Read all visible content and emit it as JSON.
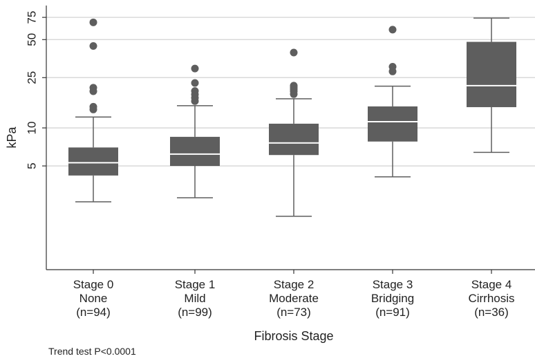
{
  "chart_data": {
    "type": "box",
    "title": "",
    "xlabel": "Fibrosis Stage",
    "ylabel": "kPa",
    "yscale": "log",
    "ylim": [
      1.3,
      95
    ],
    "yticks": [
      5,
      10,
      25,
      50,
      75
    ],
    "grid": true,
    "categories": [
      {
        "lines": [
          "Stage 0",
          "None",
          "(n=94)"
        ]
      },
      {
        "lines": [
          "Stage 1",
          "Mild",
          "(n=99)"
        ]
      },
      {
        "lines": [
          "Stage 2",
          "Moderate",
          "(n=73)"
        ]
      },
      {
        "lines": [
          "Stage 3",
          "Bridging",
          "(n=91)"
        ]
      },
      {
        "lines": [
          "Stage 4",
          "Cirrhosis",
          "(n=36)"
        ]
      }
    ],
    "boxes": [
      {
        "min": 2.6,
        "q1": 4.2,
        "median": 5.3,
        "q3": 7.0,
        "max": 12.2,
        "outliers": [
          14.0,
          14.7,
          19.5,
          20.8,
          44.5,
          68.5
        ]
      },
      {
        "min": 2.8,
        "q1": 5.0,
        "median": 6.2,
        "q3": 8.5,
        "max": 15.0,
        "outliers": [
          16.3,
          17.3,
          18.4,
          19.6,
          22.7,
          29.5
        ]
      },
      {
        "min": 2.0,
        "q1": 6.1,
        "median": 7.6,
        "q3": 10.8,
        "max": 17.0,
        "outliers": [
          18.5,
          19.5,
          20.3,
          21.0,
          21.6,
          39.5
        ]
      },
      {
        "min": 4.1,
        "q1": 7.8,
        "median": 11.2,
        "q3": 14.8,
        "max": 21.4,
        "outliers": [
          28.0,
          30.5,
          60.0
        ]
      },
      {
        "min": 6.4,
        "q1": 14.6,
        "median": 21.6,
        "q3": 48.0,
        "max": 74.0,
        "outliers": []
      }
    ],
    "colors": {
      "box": "#5e5e5e",
      "median": "#ffffff",
      "whisker": "#5e5e5e",
      "grid": "#d9d9d9",
      "axis": "#333333"
    }
  },
  "footnote": "Trend test P<0.0001"
}
